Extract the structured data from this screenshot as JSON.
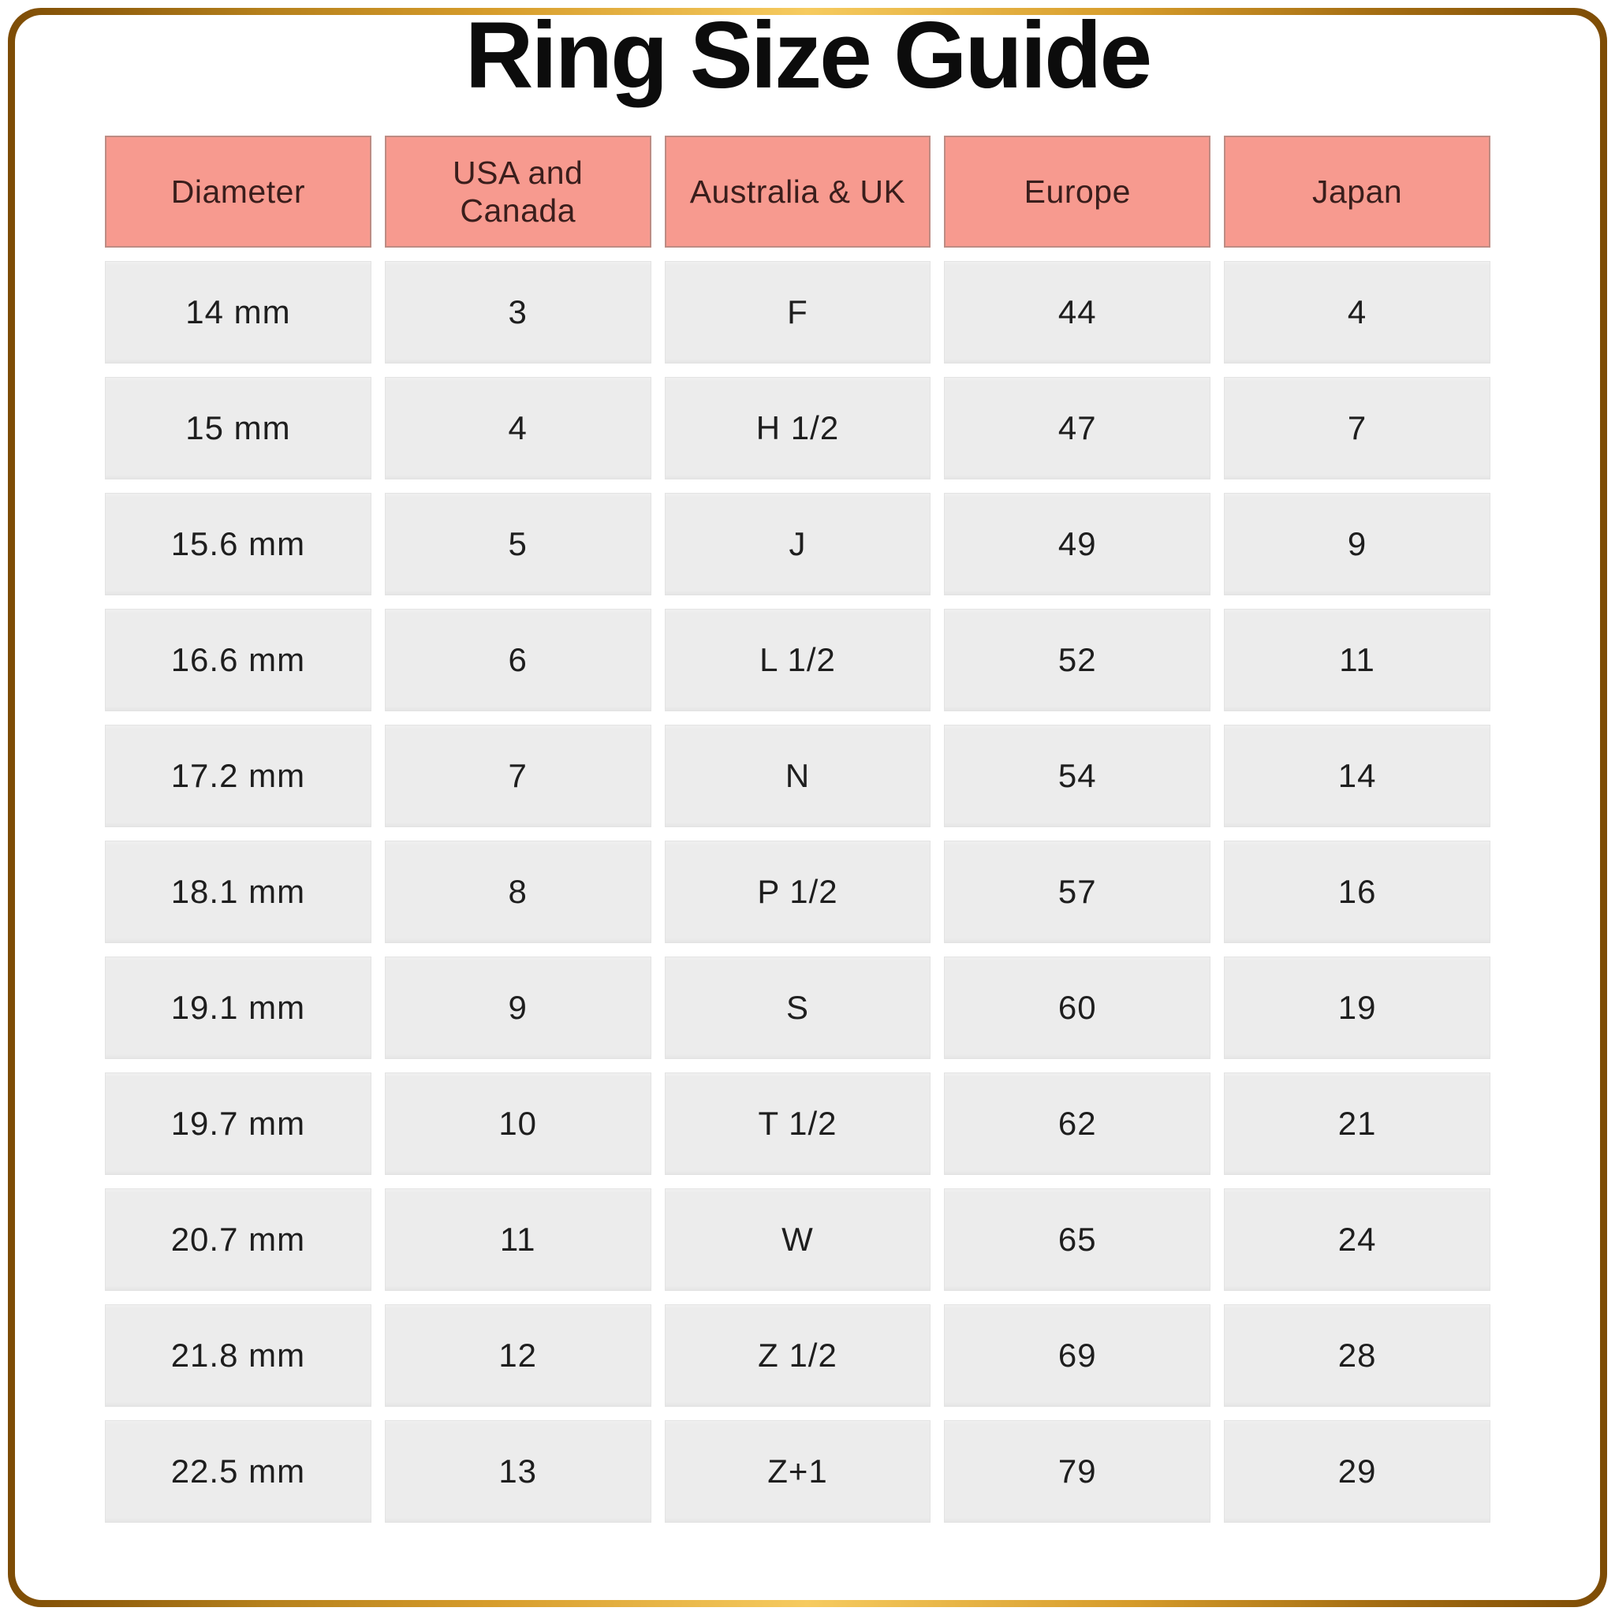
{
  "page": {
    "title": "Ring Size Guide"
  },
  "chart_data": {
    "type": "table",
    "title": "Ring Size Guide",
    "columns": [
      "Diameter",
      "USA and Canada",
      "Australia & UK",
      "Europe",
      "Japan"
    ],
    "rows": [
      [
        "14 mm",
        "3",
        "F",
        "44",
        "4"
      ],
      [
        "15 mm",
        "4",
        "H 1/2",
        "47",
        "7"
      ],
      [
        "15.6 mm",
        "5",
        "J",
        "49",
        "9"
      ],
      [
        "16.6 mm",
        "6",
        "L 1/2",
        "52",
        "11"
      ],
      [
        "17.2 mm",
        "7",
        "N",
        "54",
        "14"
      ],
      [
        "18.1 mm",
        "8",
        "P 1/2",
        "57",
        "16"
      ],
      [
        "19.1 mm",
        "9",
        "S",
        "60",
        "19"
      ],
      [
        "19.7 mm",
        "10",
        "T 1/2",
        "62",
        "21"
      ],
      [
        "20.7 mm",
        "11",
        "W",
        "65",
        "24"
      ],
      [
        "21.8 mm",
        "12",
        "Z 1/2",
        "69",
        "28"
      ],
      [
        "22.5 mm",
        "13",
        "Z+1",
        "79",
        "29"
      ]
    ],
    "layout": {
      "legend": "none",
      "grid": "off",
      "header_position": "top"
    }
  },
  "colors": {
    "title_text": "#0c0c0c",
    "header_bg": "#f79a8f",
    "header_border": "#bd8c84",
    "header_text": "#3a1e1c",
    "cell_bg": "#ececec",
    "cell_text": "#1e1e1e",
    "frame_gold_dark": "#7d4c05",
    "frame_gold_mid": "#d69c2b",
    "frame_gold_light": "#f6cb5f",
    "background": "#ffffff"
  }
}
